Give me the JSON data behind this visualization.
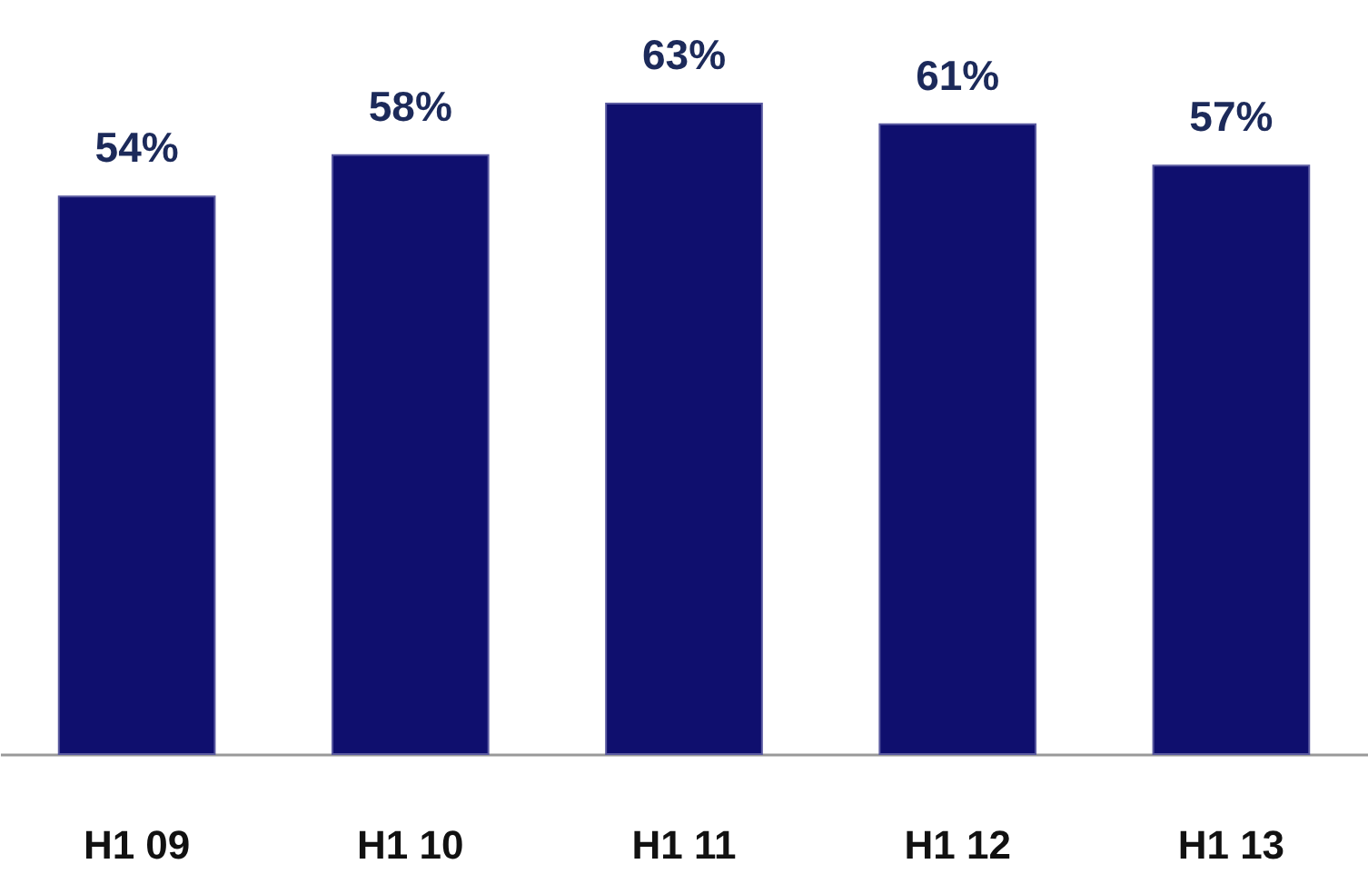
{
  "chart_data": {
    "type": "bar",
    "categories": [
      "H1 09",
      "H1 10",
      "H1 11",
      "H1 12",
      "H1 13"
    ],
    "values": [
      54,
      58,
      63,
      61,
      57
    ],
    "color": "#0f0f6e",
    "data_labels": true,
    "value_labels": [
      "54%",
      "58%",
      "63%",
      "61%",
      "57%"
    ],
    "grid": false
  }
}
